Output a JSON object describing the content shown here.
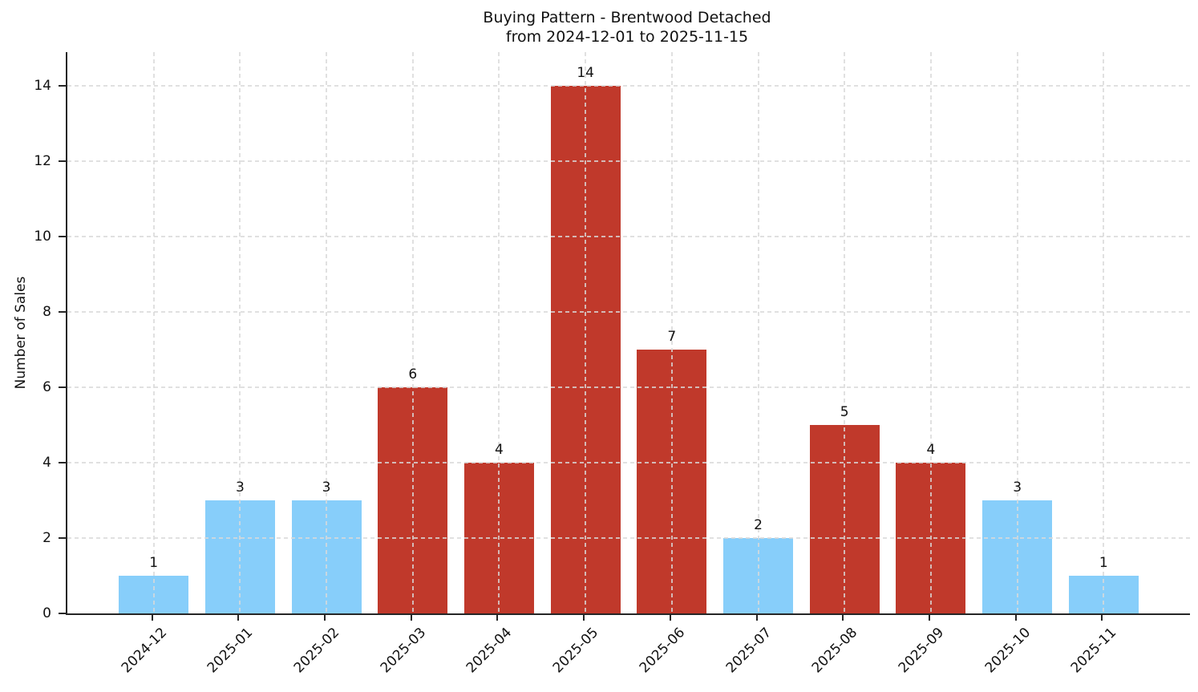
{
  "header": {
    "title_line1": "Buying Pattern - Brentwood Detached",
    "title_line2": "from 2024-12-01 to 2025-11-15"
  },
  "chart_data": {
    "type": "bar",
    "title": "Buying Pattern - Brentwood Detached\nfrom 2024-12-01 to 2025-11-15",
    "xlabel": "",
    "ylabel": "Number of Sales",
    "categories": [
      "2024-12",
      "2025-01",
      "2025-02",
      "2025-03",
      "2025-04",
      "2025-05",
      "2025-06",
      "2025-07",
      "2025-08",
      "2025-09",
      "2025-10",
      "2025-11"
    ],
    "values": [
      1,
      3,
      3,
      6,
      4,
      14,
      7,
      2,
      5,
      4,
      3,
      1
    ],
    "bar_colors": [
      "#87CEFA",
      "#87CEFA",
      "#87CEFA",
      "#C0392B",
      "#C0392B",
      "#C0392B",
      "#C0392B",
      "#87CEFA",
      "#C0392B",
      "#C0392B",
      "#87CEFA",
      "#87CEFA"
    ],
    "palette": {
      "low_month_blue": "#87CEFA",
      "high_month_red": "#C0392B"
    },
    "yticks": [
      0,
      2,
      4,
      6,
      8,
      10,
      12,
      14
    ],
    "ylim": [
      0,
      14.9
    ],
    "grid": true,
    "grid_style": "dashed",
    "legend": "none",
    "x_tick_rotation_deg": 45
  }
}
